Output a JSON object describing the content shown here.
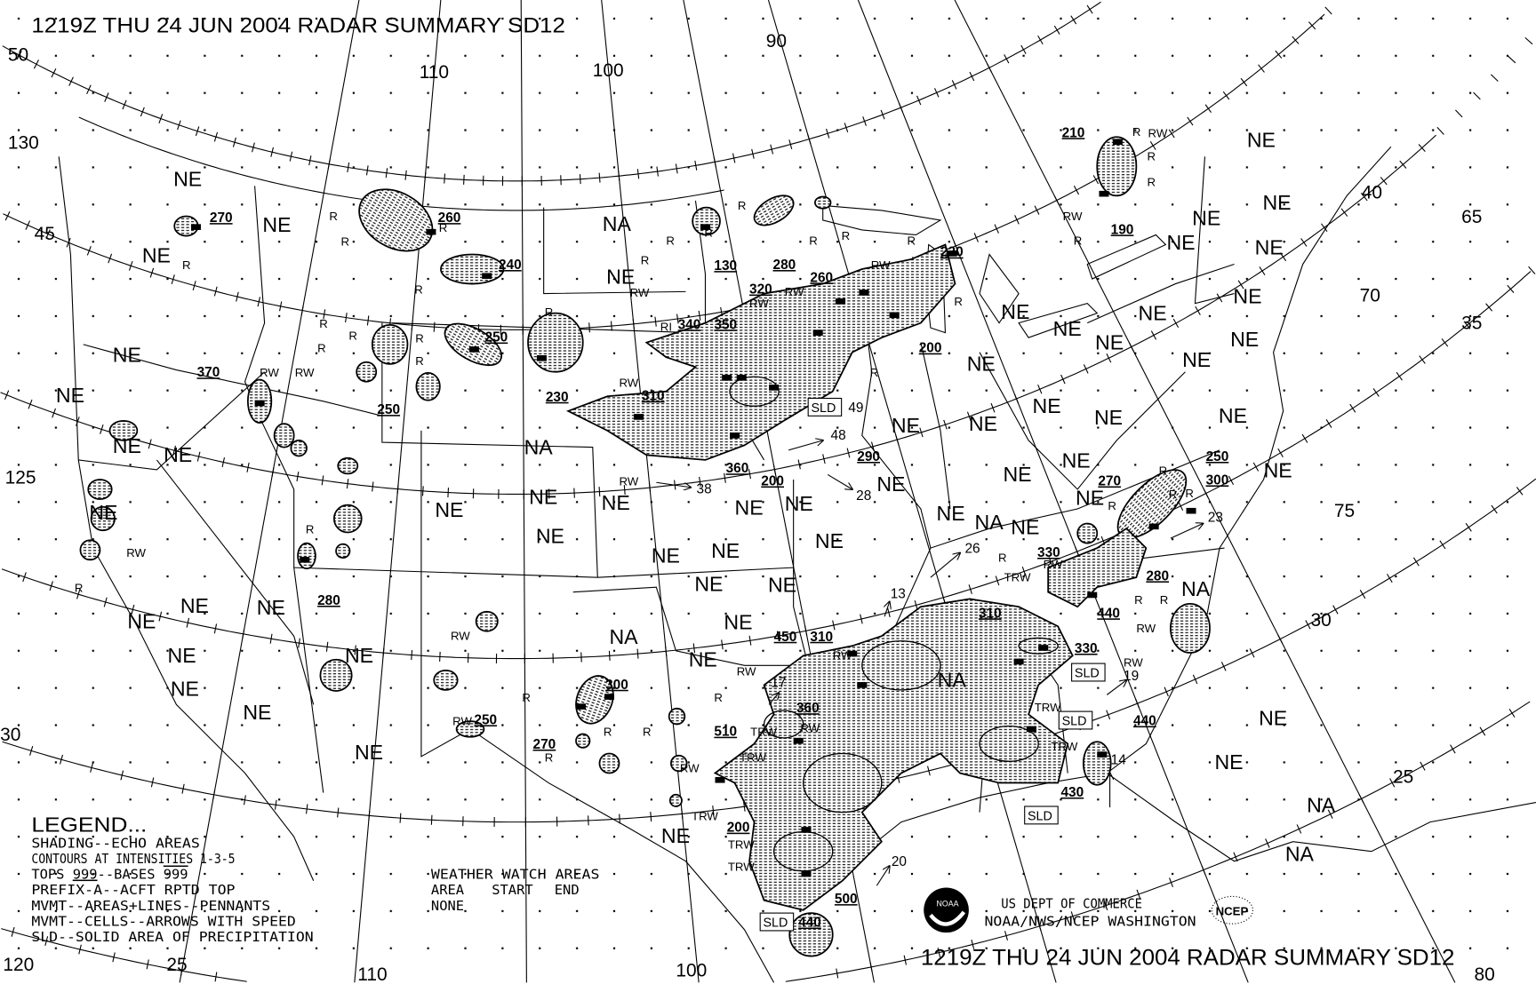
{
  "title": "1219Z THU 24 JUN 2004 RADAR SUMMARY SD12",
  "footer_title": "1219Z THU 24 JUN 2004 RADAR SUMMARY SD12",
  "legend": {
    "heading": "LEGEND...",
    "line1": "SHADING--ECHO AREAS",
    "line2": "CONTOURS AT INTENSITIES 1-3-5",
    "line3_a": "TOPS ",
    "line3_b": "999",
    "line3_c": "--BASES ",
    "line3_d": "999",
    "line4": "PREFIX-A--ACFT RPTD TOP",
    "line5": "MVMT--AREAS+LINES--PENNANTS",
    "line6": "MVMT--CELLS--ARROWS WITH SPEED",
    "line7": "SLD--SOLID AREA OF PRECIPITATION"
  },
  "watch": {
    "heading": "WEATHER WATCH AREAS",
    "col_area": "AREA",
    "col_start": "START",
    "col_end": "END",
    "value": "NONE"
  },
  "agency": {
    "line1": "US DEPT OF COMMERCE",
    "line2": "NOAA/NWS/NCEP WASHINGTON",
    "noaa_logo": "NOAA",
    "ncep_logo": "NCEP"
  },
  "colors": {
    "ink": "#000000",
    "background": "#ffffff"
  },
  "graticule_labels": [
    "50",
    "45",
    "130",
    "125",
    "120",
    "25",
    "30",
    "110",
    "100",
    "90",
    "110",
    "100",
    "40",
    "35",
    "30",
    "25",
    "65",
    "70",
    "75",
    "80"
  ],
  "region_labels": [
    "NE",
    "NE",
    "NE",
    "NE",
    "NE",
    "NE",
    "NE",
    "NE",
    "NE",
    "NE",
    "NE",
    "NE",
    "NE",
    "NE",
    "NE",
    "NE",
    "NE",
    "NE",
    "NE",
    "NE",
    "NE",
    "NE",
    "NE",
    "NE",
    "NE",
    "NE",
    "NE",
    "NE",
    "NE",
    "NE",
    "NE",
    "NE",
    "NE",
    "NE",
    "NE",
    "NE",
    "NE",
    "NE",
    "NE",
    "NE",
    "NE",
    "NE",
    "NE",
    "NE",
    "NE",
    "NE",
    "NE",
    "NE",
    "NE",
    "NE",
    "NE",
    "NE",
    "NE",
    "NE",
    "NE",
    "NE",
    "NE",
    "NE",
    "NA",
    "NA",
    "NA",
    "NA",
    "NA",
    "NA",
    "NA",
    "NA"
  ],
  "tops": [
    "270",
    "260",
    "240",
    "250",
    "370",
    "250",
    "230",
    "310",
    "280",
    "300",
    "270",
    "130",
    "280",
    "260",
    "320",
    "340",
    "350",
    "220",
    "200",
    "290",
    "360",
    "200",
    "210",
    "190",
    "250",
    "300",
    "270",
    "330",
    "280",
    "440",
    "310",
    "330",
    "450",
    "310",
    "360",
    "510",
    "200",
    "500",
    "440",
    "430",
    "440",
    "250"
  ],
  "speeds": [
    "49",
    "48",
    "28",
    "38",
    "26",
    "13",
    "17",
    "20",
    "23",
    "19",
    "14"
  ],
  "sld_boxes": [
    "SLD",
    "SLD",
    "SLD",
    "SLD",
    "SLD"
  ],
  "precip_types": [
    "R",
    "R",
    "R",
    "R",
    "R",
    "RW",
    "RW",
    "R",
    "R",
    "R",
    "R",
    "R",
    "R",
    "R",
    "RW",
    "R",
    "R",
    "R",
    "R",
    "R",
    "RW",
    "RW",
    "RI",
    "RW",
    "R",
    "RW",
    "R",
    "R",
    "R",
    "RW",
    "R",
    "RW",
    "R",
    "RW",
    "R",
    "R",
    "R",
    "R",
    "RW",
    "RW",
    "RW",
    "TRW",
    "TRW",
    "RW",
    "TRW",
    "TRW",
    "TRW",
    "RW",
    "R",
    "RW",
    "R",
    "R",
    "RW",
    "R",
    "R",
    "R",
    "R",
    "RW",
    "TRW",
    "R",
    "R",
    "R",
    "RW",
    "RW",
    "TRW",
    "TRW",
    "R"
  ]
}
